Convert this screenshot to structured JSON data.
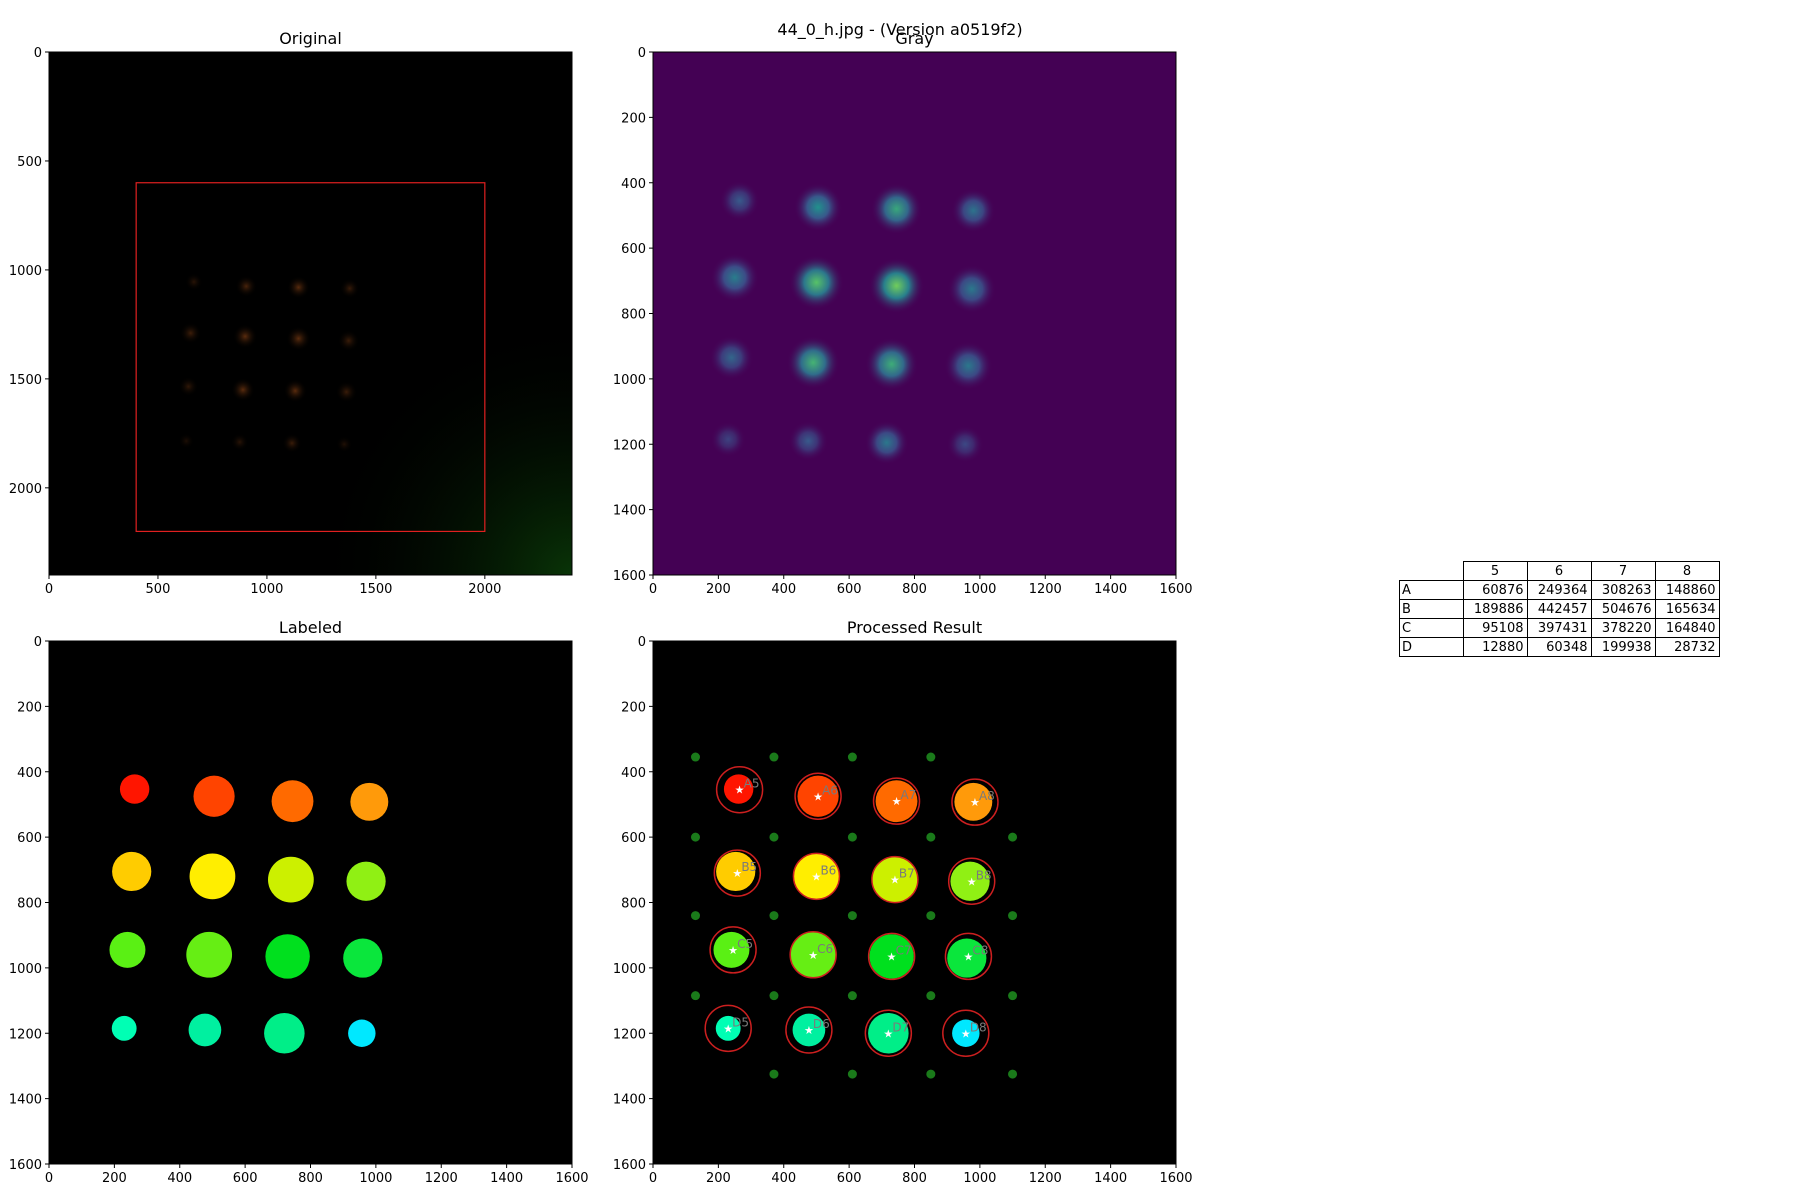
{
  "figure": {
    "suptitle": "44_0_h.jpg - (Version a0519f2)"
  },
  "colors": {
    "gray_background": "#440154",
    "labeled_background": "#000000",
    "roi_box": "#e02020",
    "grid_dot": "#1a7a1a",
    "match_circle": "#cc1f1f"
  },
  "chart_data": [
    {
      "type": "image",
      "title": "Original",
      "xlim": [
        0,
        2400
      ],
      "ylim": [
        2400,
        0
      ],
      "xticks": [
        0,
        500,
        1000,
        1500,
        2000
      ],
      "yticks": [
        0,
        500,
        1000,
        1500,
        2000
      ],
      "roi": {
        "x0": 400,
        "y0": 600,
        "x1": 2000,
        "y1": 2200
      }
    },
    {
      "type": "heatmap",
      "title": "Gray",
      "colormap": "viridis",
      "xlim": [
        0,
        1600
      ],
      "ylim": [
        1600,
        0
      ],
      "xticks": [
        0,
        200,
        400,
        600,
        800,
        1000,
        1200,
        1400,
        1600
      ],
      "yticks": [
        0,
        200,
        400,
        600,
        800,
        1000,
        1200,
        1400,
        1600
      ],
      "spots": [
        {
          "x": 265,
          "y": 455,
          "r": 45,
          "peak": 0.28
        },
        {
          "x": 505,
          "y": 475,
          "r": 55,
          "peak": 0.5
        },
        {
          "x": 745,
          "y": 480,
          "r": 58,
          "peak": 0.6
        },
        {
          "x": 980,
          "y": 485,
          "r": 50,
          "peak": 0.38
        },
        {
          "x": 250,
          "y": 690,
          "r": 55,
          "peak": 0.42
        },
        {
          "x": 500,
          "y": 705,
          "r": 62,
          "peak": 0.72
        },
        {
          "x": 745,
          "y": 715,
          "r": 63,
          "peak": 0.78
        },
        {
          "x": 975,
          "y": 725,
          "r": 55,
          "peak": 0.4
        },
        {
          "x": 240,
          "y": 935,
          "r": 50,
          "peak": 0.33
        },
        {
          "x": 490,
          "y": 950,
          "r": 60,
          "peak": 0.65
        },
        {
          "x": 730,
          "y": 955,
          "r": 60,
          "peak": 0.62
        },
        {
          "x": 965,
          "y": 960,
          "r": 55,
          "peak": 0.4
        },
        {
          "x": 230,
          "y": 1185,
          "r": 40,
          "peak": 0.2
        },
        {
          "x": 475,
          "y": 1190,
          "r": 45,
          "peak": 0.28
        },
        {
          "x": 715,
          "y": 1195,
          "r": 50,
          "peak": 0.4
        },
        {
          "x": 955,
          "y": 1200,
          "r": 42,
          "peak": 0.22
        }
      ]
    },
    {
      "type": "image",
      "title": "Labeled",
      "xlim": [
        0,
        1600
      ],
      "ylim": [
        1600,
        0
      ],
      "xticks": [
        0,
        200,
        400,
        600,
        800,
        1000,
        1200,
        1400,
        1600
      ],
      "yticks": [
        0,
        200,
        400,
        600,
        800,
        1000,
        1200,
        1400,
        1600
      ],
      "blobs": [
        {
          "x": 262,
          "y": 453,
          "r": 45,
          "color": "#ff1500"
        },
        {
          "x": 505,
          "y": 475,
          "r": 63,
          "color": "#ff4400"
        },
        {
          "x": 745,
          "y": 490,
          "r": 64,
          "color": "#ff6a00"
        },
        {
          "x": 980,
          "y": 492,
          "r": 58,
          "color": "#ff9a0a"
        },
        {
          "x": 253,
          "y": 705,
          "r": 60,
          "color": "#ffcc00"
        },
        {
          "x": 500,
          "y": 720,
          "r": 70,
          "color": "#ffee00"
        },
        {
          "x": 740,
          "y": 730,
          "r": 70,
          "color": "#ccf000"
        },
        {
          "x": 970,
          "y": 735,
          "r": 60,
          "color": "#90f014"
        },
        {
          "x": 240,
          "y": 945,
          "r": 55,
          "color": "#5af014"
        },
        {
          "x": 490,
          "y": 960,
          "r": 70,
          "color": "#66ee14"
        },
        {
          "x": 730,
          "y": 965,
          "r": 68,
          "color": "#00e01e"
        },
        {
          "x": 960,
          "y": 970,
          "r": 60,
          "color": "#0ae63c"
        },
        {
          "x": 230,
          "y": 1185,
          "r": 38,
          "color": "#00ffb4"
        },
        {
          "x": 477,
          "y": 1190,
          "r": 50,
          "color": "#00f0a0"
        },
        {
          "x": 720,
          "y": 1200,
          "r": 62,
          "color": "#00ee88"
        },
        {
          "x": 957,
          "y": 1200,
          "r": 42,
          "color": "#00e8ff"
        }
      ]
    },
    {
      "type": "image",
      "title": "Processed Result",
      "xlim": [
        0,
        1600
      ],
      "ylim": [
        1600,
        0
      ],
      "xticks": [
        0,
        200,
        400,
        600,
        800,
        1000,
        1200,
        1400,
        1600
      ],
      "yticks": [
        0,
        200,
        400,
        600,
        800,
        1000,
        1200,
        1400,
        1600
      ],
      "well_labels": [
        "A5",
        "A6",
        "A7",
        "A8",
        "B5",
        "B6",
        "B7",
        "B8",
        "C5",
        "C6",
        "C7",
        "C8",
        "D5",
        "D6",
        "D7",
        "D8"
      ],
      "well_circles": [
        {
          "x": 265,
          "y": 455
        },
        {
          "x": 505,
          "y": 475
        },
        {
          "x": 745,
          "y": 490
        },
        {
          "x": 985,
          "y": 493
        },
        {
          "x": 258,
          "y": 710
        },
        {
          "x": 500,
          "y": 720
        },
        {
          "x": 740,
          "y": 730
        },
        {
          "x": 975,
          "y": 735
        },
        {
          "x": 245,
          "y": 945
        },
        {
          "x": 490,
          "y": 960
        },
        {
          "x": 730,
          "y": 965
        },
        {
          "x": 965,
          "y": 965
        },
        {
          "x": 230,
          "y": 1185
        },
        {
          "x": 477,
          "y": 1190
        },
        {
          "x": 720,
          "y": 1200
        },
        {
          "x": 957,
          "y": 1200
        }
      ],
      "grid_dots": [
        {
          "x": 130,
          "y": 355
        },
        {
          "x": 370,
          "y": 355
        },
        {
          "x": 610,
          "y": 355
        },
        {
          "x": 850,
          "y": 355
        },
        {
          "x": 130,
          "y": 600
        },
        {
          "x": 370,
          "y": 600
        },
        {
          "x": 610,
          "y": 600
        },
        {
          "x": 850,
          "y": 600
        },
        {
          "x": 1100,
          "y": 600
        },
        {
          "x": 130,
          "y": 840
        },
        {
          "x": 370,
          "y": 840
        },
        {
          "x": 610,
          "y": 840
        },
        {
          "x": 850,
          "y": 840
        },
        {
          "x": 1100,
          "y": 840
        },
        {
          "x": 130,
          "y": 1085
        },
        {
          "x": 370,
          "y": 1085
        },
        {
          "x": 610,
          "y": 1085
        },
        {
          "x": 850,
          "y": 1085
        },
        {
          "x": 1100,
          "y": 1085
        },
        {
          "x": 370,
          "y": 1325
        },
        {
          "x": 610,
          "y": 1325
        },
        {
          "x": 850,
          "y": 1325
        },
        {
          "x": 1100,
          "y": 1325
        }
      ]
    }
  ],
  "results_table": {
    "columns": [
      "5",
      "6",
      "7",
      "8"
    ],
    "rows": [
      {
        "label": "A",
        "values": [
          "60876",
          "249364",
          "308263",
          "148860"
        ]
      },
      {
        "label": "B",
        "values": [
          "189886",
          "442457",
          "504676",
          "165634"
        ]
      },
      {
        "label": "C",
        "values": [
          "95108",
          "397431",
          "378220",
          "164840"
        ]
      },
      {
        "label": "D",
        "values": [
          "12880",
          "60348",
          "199938",
          "28732"
        ]
      }
    ]
  }
}
